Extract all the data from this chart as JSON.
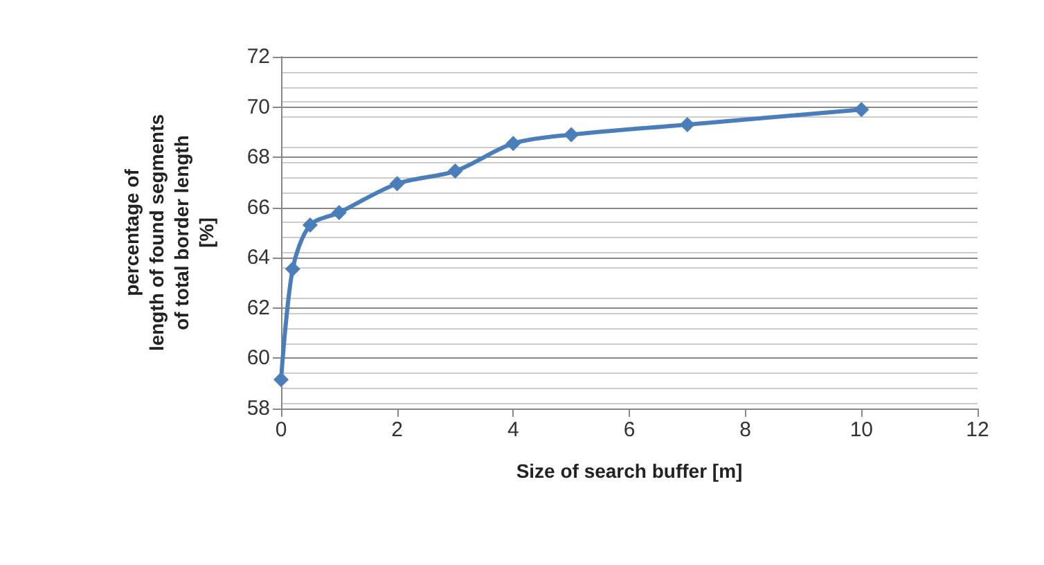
{
  "chart_data": {
    "type": "line",
    "xlabel": "Size of search buffer [m]",
    "ylabel": "percentage of\nlength of found segments\nof total border length\n[%]",
    "x": [
      0,
      0.2,
      0.5,
      1,
      2,
      3,
      4,
      5,
      7,
      10
    ],
    "series": [
      {
        "color": "#4a7ebb",
        "values": [
          59.15,
          63.55,
          65.3,
          65.8,
          66.95,
          67.45,
          68.55,
          68.9,
          69.3,
          69.9
        ]
      }
    ],
    "xlim": [
      0,
      12
    ],
    "xticks": [
      0,
      2,
      4,
      6,
      8,
      10,
      12
    ],
    "ylim": [
      58,
      72
    ],
    "yticks": [
      58,
      60,
      62,
      64,
      66,
      68,
      70,
      72
    ],
    "grid": "y",
    "marker": "diamond",
    "line_style": "solid"
  }
}
